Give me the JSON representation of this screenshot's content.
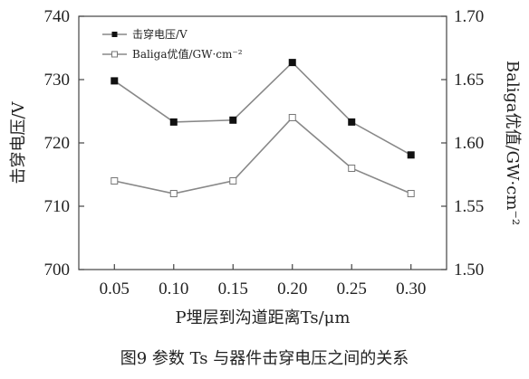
{
  "caption": "图9 参数 Ts 与器件击穿电压之间的关系",
  "chart_data": {
    "type": "line",
    "xlabel": "P埋层到沟道距离Ts/μm",
    "x": [
      0.05,
      0.1,
      0.15,
      0.2,
      0.25,
      0.3
    ],
    "x_tick_labels": [
      "0.05",
      "0.10",
      "0.15",
      "0.20",
      "0.25",
      "0.30"
    ],
    "xlim": [
      0.02,
      0.33
    ],
    "y_left": {
      "label": "击穿电压/V",
      "ylim": [
        700,
        740
      ],
      "ticks": [
        700,
        710,
        720,
        730,
        740
      ]
    },
    "y_right": {
      "label": "Baliga优值/GW·cm⁻²",
      "ylim": [
        1.5,
        1.7
      ],
      "ticks": [
        1.5,
        1.55,
        1.6,
        1.65,
        1.7
      ],
      "tick_labels": [
        "1.50",
        "1.55",
        "1.60",
        "1.65",
        "1.70"
      ]
    },
    "series": [
      {
        "name": "击穿电压/V",
        "axis": "left",
        "marker": "filled-square",
        "color": "#888888",
        "values": [
          729.8,
          723.3,
          723.6,
          732.7,
          723.3,
          718.1
        ]
      },
      {
        "name": "Baliga优值/GW·cm⁻²",
        "axis": "right",
        "marker": "open-square",
        "color": "#888888",
        "values": [
          1.57,
          1.56,
          1.57,
          1.62,
          1.58,
          1.56
        ]
      }
    ],
    "legend": "top-left",
    "grid": false
  }
}
